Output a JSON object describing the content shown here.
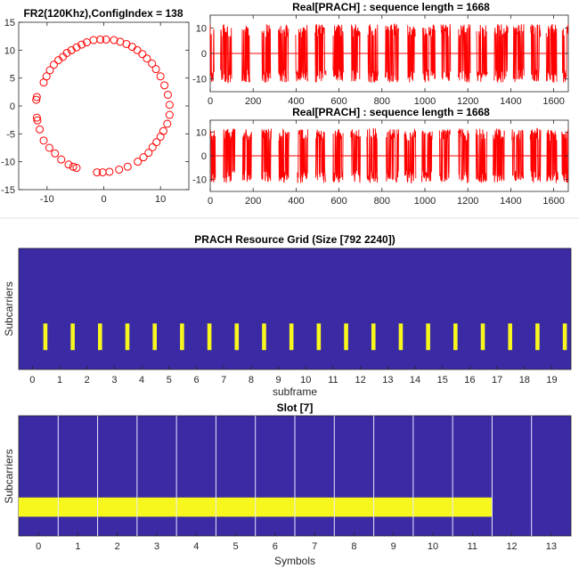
{
  "chart_data": [
    {
      "type": "scatter",
      "title": "FR2(120Khz),ConfigIndex = 138",
      "xlim": [
        -15,
        15
      ],
      "ylim": [
        -15,
        15
      ],
      "xticks": [
        -10,
        0,
        10
      ],
      "yticks": [
        -15,
        -10,
        -5,
        0,
        5,
        10,
        15
      ],
      "marker": "circle",
      "color": "#ff0000",
      "points": [
        [
          -1.8,
          11.8
        ],
        [
          -0.6,
          11.9
        ],
        [
          0.4,
          11.9
        ],
        [
          1.8,
          11.8
        ],
        [
          2.9,
          11.5
        ],
        [
          4.0,
          11.1
        ],
        [
          5.0,
          10.6
        ],
        [
          5.9,
          10.0
        ],
        [
          6.8,
          9.3
        ],
        [
          7.6,
          8.5
        ],
        [
          8.5,
          7.6
        ],
        [
          9.2,
          6.6
        ],
        [
          10.0,
          5.3
        ],
        [
          10.7,
          3.7
        ],
        [
          11.3,
          2.0
        ],
        [
          11.6,
          0.2
        ],
        [
          11.6,
          -1.6
        ],
        [
          11.2,
          -3.2
        ],
        [
          10.5,
          -4.5
        ],
        [
          10.0,
          -5.5
        ],
        [
          9.3,
          -6.5
        ],
        [
          8.6,
          -7.4
        ],
        [
          7.9,
          -8.4
        ],
        [
          7.0,
          -9.2
        ],
        [
          6.0,
          -10.0
        ],
        [
          4.2,
          -10.9
        ],
        [
          2.7,
          -11.4
        ],
        [
          1.0,
          -11.8
        ],
        [
          -0.2,
          -11.9
        ],
        [
          -1.2,
          -11.9
        ],
        [
          -4.8,
          -11.1
        ],
        [
          -5.4,
          -10.9
        ],
        [
          -6.2,
          -10.5
        ],
        [
          -7.5,
          -9.6
        ],
        [
          -8.6,
          -8.5
        ],
        [
          -9.6,
          -7.5
        ],
        [
          -10.6,
          -6.2
        ],
        [
          -11.3,
          -4.2
        ],
        [
          -11.7,
          -2.6
        ],
        [
          -11.8,
          -2.1
        ],
        [
          -11.9,
          1.1
        ],
        [
          -11.8,
          1.6
        ],
        [
          -10.6,
          4.2
        ],
        [
          -10.1,
          5.3
        ],
        [
          -9.5,
          6.4
        ],
        [
          -8.8,
          7.4
        ],
        [
          -8.0,
          8.2
        ],
        [
          -7.2,
          8.8
        ],
        [
          -6.5,
          9.5
        ],
        [
          -5.7,
          10.0
        ],
        [
          -4.8,
          10.5
        ],
        [
          -3.9,
          11.0
        ],
        [
          -3.0,
          11.4
        ]
      ]
    },
    {
      "type": "line",
      "title": "Real[PRACH] : sequence length = 1668",
      "xlim": [
        0,
        1668
      ],
      "ylim": [
        -15,
        15
      ],
      "xticks": [
        0,
        200,
        400,
        600,
        800,
        1000,
        1200,
        1400,
        1600
      ],
      "yticks": [
        -10,
        0,
        10
      ],
      "color": "#ff0000",
      "amplitude": 11.5,
      "bursts": [
        [
          0,
          18
        ],
        [
          48,
          100
        ],
        [
          148,
          185
        ],
        [
          240,
          282
        ],
        [
          318,
          365
        ],
        [
          398,
          455
        ],
        [
          488,
          540
        ],
        [
          572,
          623
        ],
        [
          658,
          700
        ],
        [
          735,
          782
        ],
        [
          815,
          878
        ],
        [
          920,
          955
        ],
        [
          990,
          1048
        ],
        [
          1075,
          1120
        ],
        [
          1155,
          1212
        ],
        [
          1240,
          1292
        ],
        [
          1322,
          1388
        ],
        [
          1412,
          1462
        ],
        [
          1492,
          1540
        ],
        [
          1565,
          1615
        ],
        [
          1640,
          1668
        ]
      ]
    },
    {
      "type": "line",
      "title": "Real[PRACH] : sequence length = 1668",
      "xlim": [
        0,
        1668
      ],
      "ylim": [
        -15,
        15
      ],
      "xticks": [
        0,
        200,
        400,
        600,
        800,
        1000,
        1200,
        1400,
        1600
      ],
      "yticks": [
        -10,
        0,
        10
      ],
      "color": "#ff0000",
      "amplitude": 11.5,
      "bursts": [
        [
          0,
          25
        ],
        [
          62,
          115
        ],
        [
          150,
          192
        ],
        [
          240,
          285
        ],
        [
          320,
          368
        ],
        [
          405,
          455
        ],
        [
          490,
          538
        ],
        [
          572,
          620
        ],
        [
          655,
          700
        ],
        [
          730,
          780
        ],
        [
          820,
          878
        ],
        [
          905,
          958
        ],
        [
          985,
          1035
        ],
        [
          1068,
          1118
        ],
        [
          1155,
          1205
        ],
        [
          1238,
          1290
        ],
        [
          1318,
          1372
        ],
        [
          1405,
          1460
        ],
        [
          1490,
          1540
        ],
        [
          1568,
          1620
        ],
        [
          1638,
          1668
        ]
      ]
    },
    {
      "type": "heatmap",
      "title": "PRACH Resource Grid (Size [792 2240])",
      "xlabel": "subframe",
      "ylabel": "Subcarriers",
      "xlim": [
        -0.5,
        19.7
      ],
      "xticks": [
        0,
        1,
        2,
        3,
        4,
        5,
        6,
        7,
        8,
        9,
        10,
        11,
        12,
        13,
        14,
        15,
        16,
        17,
        18,
        19
      ],
      "background_color": "#3a2aa4",
      "highlight_color": "#f7f71e",
      "occasions_subframe": [
        0.4,
        1.4,
        2.4,
        3.4,
        4.4,
        5.4,
        6.4,
        7.4,
        8.4,
        9.4,
        10.4,
        11.4,
        12.4,
        13.4,
        14.4,
        15.4,
        16.4,
        17.4,
        18.4,
        19.4
      ],
      "occasion_width_subframe": 0.15,
      "occasion_subcarrier_fraction": [
        0.16,
        0.38
      ]
    },
    {
      "type": "heatmap",
      "title": "Slot [7]",
      "xlabel": "Symbols",
      "ylabel": "Subcarriers",
      "xlim": [
        -0.5,
        13.5
      ],
      "xticks": [
        0,
        1,
        2,
        3,
        4,
        5,
        6,
        7,
        8,
        9,
        10,
        11,
        12,
        13
      ],
      "background_color": "#3a2aa4",
      "highlight_color": "#f7f71e",
      "grid_color": "#e8e8ff",
      "prach_symbols": [
        -0.5,
        11.5
      ],
      "prach_subcarrier_fraction": [
        0.16,
        0.32
      ]
    }
  ]
}
